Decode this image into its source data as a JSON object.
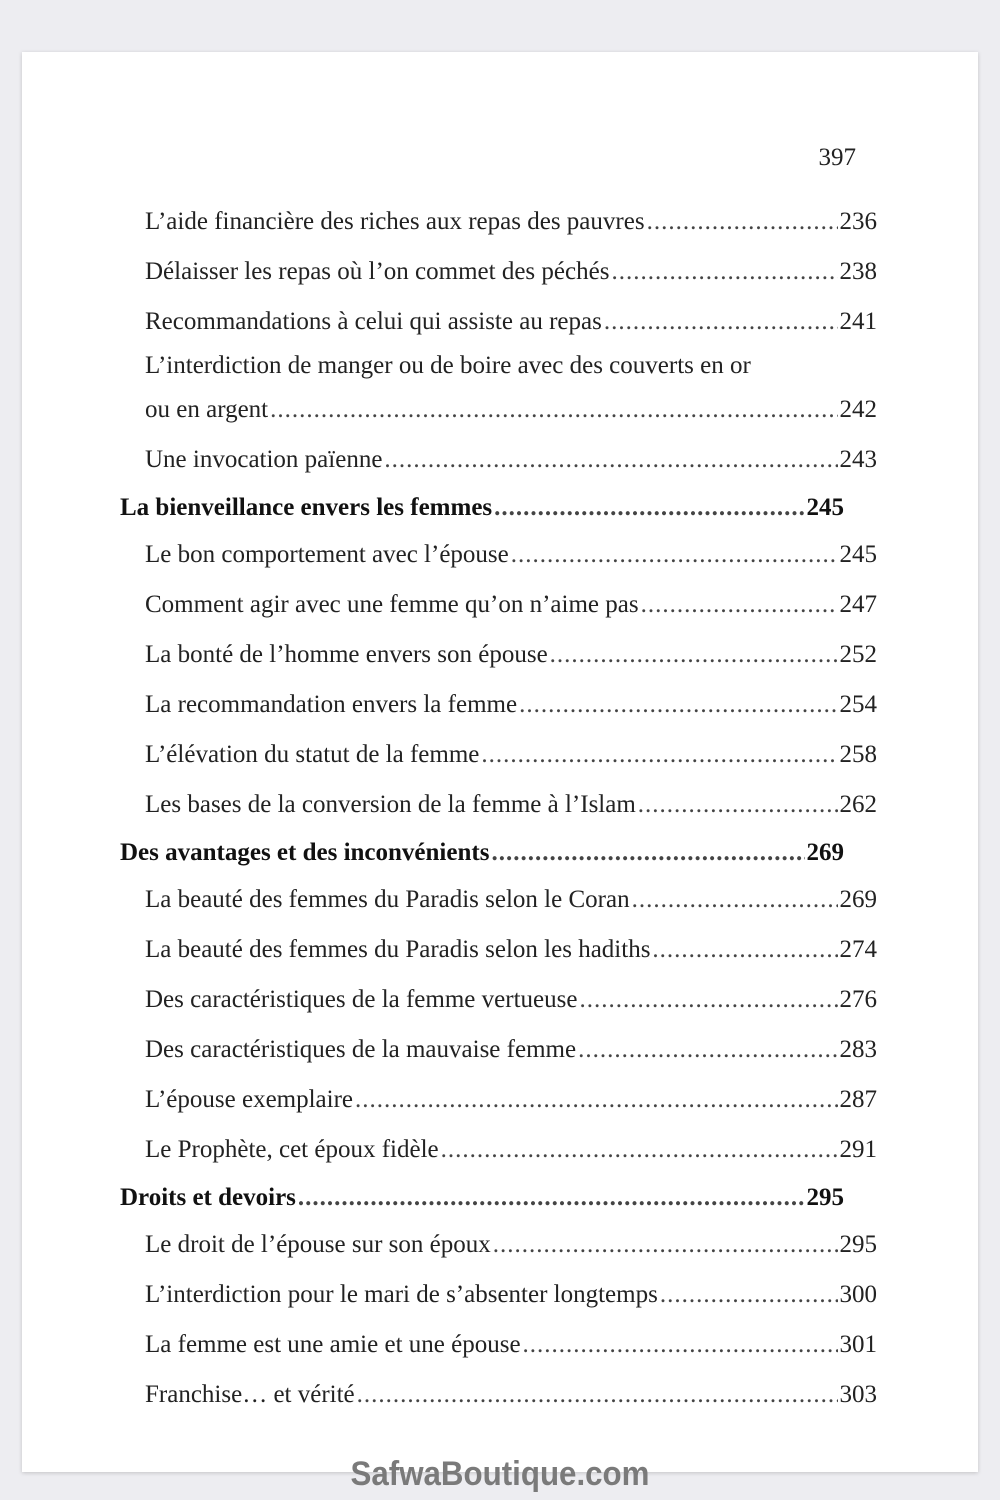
{
  "page_number": "397",
  "entries": [
    {
      "level": 2,
      "title": "L’aide financière des riches aux repas des pauvres",
      "page": "236"
    },
    {
      "level": 2,
      "title": "Délaisser les repas où l’on commet des péchés",
      "page": "238"
    },
    {
      "level": 2,
      "title": "Recommandations à celui qui assiste au repas",
      "page": "241"
    },
    {
      "level": 2,
      "title_lines": [
        "L’interdiction de manger ou de boire avec des couverts en or",
        "ou en argent"
      ],
      "page": "242"
    },
    {
      "level": 2,
      "title": "Une invocation païenne",
      "page": "243"
    },
    {
      "level": 1,
      "title": "La bienveillance envers les femmes",
      "page": "245"
    },
    {
      "level": 2,
      "title": "Le bon comportement avec l’épouse",
      "page": "245"
    },
    {
      "level": 2,
      "title": "Comment agir avec une femme qu’on n’aime pas",
      "page": "247"
    },
    {
      "level": 2,
      "title": "La bonté de l’homme envers son épouse",
      "page": "252"
    },
    {
      "level": 2,
      "title": "La recommandation envers la femme",
      "page": "254"
    },
    {
      "level": 2,
      "title": "L’élévation du statut de la femme",
      "page": "258"
    },
    {
      "level": 2,
      "title": "Les bases de la conversion de la femme à l’Islam",
      "page": "262"
    },
    {
      "level": 1,
      "title": "Des avantages et des inconvénients",
      "page": "269"
    },
    {
      "level": 2,
      "title": "La beauté des femmes du Paradis selon le Coran",
      "page": "269"
    },
    {
      "level": 2,
      "title": "La beauté des femmes du Paradis selon les hadiths",
      "page": "274"
    },
    {
      "level": 2,
      "title": "Des caractéristiques de la femme vertueuse",
      "page": "276"
    },
    {
      "level": 2,
      "title": "Des caractéristiques de la mauvaise femme",
      "page": "283"
    },
    {
      "level": 2,
      "title": "L’épouse exemplaire",
      "page": "287"
    },
    {
      "level": 2,
      "title": "Le Prophète, cet époux fidèle",
      "page": "291"
    },
    {
      "level": 1,
      "title": "Droits et devoirs",
      "page": "295"
    },
    {
      "level": 2,
      "title": "Le droit de l’épouse sur son époux",
      "page": "295"
    },
    {
      "level": 2,
      "title": "L’interdiction pour le mari de s’absenter longtemps",
      "page": "300"
    },
    {
      "level": 2,
      "title": "La femme est une amie et une épouse",
      "page": "301"
    },
    {
      "level": 2,
      "title": "Franchise… et vérité",
      "page": "303"
    }
  ],
  "watermark": "SafwaBoutique.com"
}
